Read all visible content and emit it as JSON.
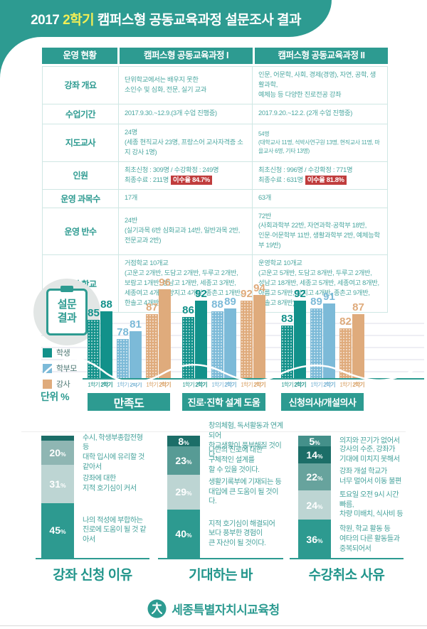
{
  "header": {
    "title_prefix": "2017 ",
    "title_highlight": "2학기",
    "title_rest": " 캠퍼스형 공동교육과정 설문조사 결과"
  },
  "colors": {
    "teal": "#2d9b91",
    "highlight_yellow": "#f2ee55",
    "badge_red": "#c03d3d",
    "student": "#12918a",
    "parent": "#7cbad8",
    "instructor": "#dfab7c"
  },
  "table": {
    "headers": [
      "운영 현황",
      "캠퍼스형 공동교육과정 I",
      "캠퍼스형 공동교육과정 II"
    ],
    "rows": [
      {
        "label": "강좌 개요",
        "c1": "단위학교에서는 배우지 못한\n소인수 및 심화, 전문, 실기 교과",
        "c2": "인문, 어문학, 사회, 경제(경영), 자연, 공학, 생활과학,\n예체능 등 다양한 진로전공 강좌"
      },
      {
        "label": "수업기간",
        "c1": "2017.9.30.~12.9.(3개 수업 진행중)",
        "c2": "2017.9.20.~12.2. (2개 수업 진행중)"
      },
      {
        "label": "지도교사",
        "c1": "24명\n(세종 현직교사 23명, 프랑스어 교사자격증 소지 강사 1명)",
        "c2": "54명\n(대학교사 11명, 석박사연구원 13명, 현직교사 11명, 마을교사 6명, 기타 13명)"
      },
      {
        "label": "인원",
        "c1_line1": "최초신청 : 309명 / 수강확정 : 249명",
        "c1_line2": "최종수료 : 211명",
        "c1_badge": "이수율 84.7%",
        "c2_line1": "최초신청 : 996명 / 수강확정 : 771명",
        "c2_line2": "최종수료 : 631명",
        "c2_badge": "이수율 81.8%"
      },
      {
        "label": "운영 과목수",
        "c1": "17개",
        "c2": "63개"
      },
      {
        "label": "운영 반수",
        "c1": "24반\n(실기과목 6반 심화교과 14반, 일반과목 2반,\n전문교과 2반)",
        "c2": "72반\n(사회과학부 22반, 자연과학·공학부 18반,\n인문·어문학부 11반, 생활과학부 2반, 예체능학부 19반)"
      },
      {
        "label": "참여 학교",
        "c1": "거점학교 10개교\n(고운고 2개반, 도담고 2개반, 두루고 2개반,\n보람고 1개반, 성남고 1개반, 세종고 3개반,\n세종여고 4개반, 양지고 4개반, 종촌고 1개반,\n한솔고 4개반)",
        "c2": "운영학교 10개교\n(고운고 5개반, 도담고 8개반, 두루고 2개반,\n성남고 18개반, 세종고 5개반, 세종여고 8개반,\n아름고 5개반, 양지고 4개반, 종촌고 9개반,\n한솔고 8개반)"
      }
    ]
  },
  "survey_badge": {
    "line1": "설문",
    "line2": "결과"
  },
  "chart_data": [
    {
      "id": "survey-results",
      "type": "bar",
      "title": "설문 결과",
      "unit_label": "단위 %",
      "ylim": [
        64,
        100
      ],
      "grid": true,
      "legend_position": "left",
      "series_names": [
        "학생",
        "학부모",
        "강사"
      ],
      "series_colors": [
        "#12918a",
        "#7cbad8",
        "#dfab7c"
      ],
      "x_labels": [
        "1학기",
        "2학기"
      ],
      "groups": [
        {
          "category": "만족도",
          "series": [
            [
              85,
              88
            ],
            [
              78,
              81
            ],
            [
              87,
              96
            ]
          ]
        },
        {
          "category": "진로·진학 설계 도움",
          "series": [
            [
              86,
              92
            ],
            [
              88,
              89
            ],
            [
              92,
              94
            ]
          ]
        },
        {
          "category": "신청의사/개설의사",
          "series": [
            [
              83,
              92
            ],
            [
              89,
              91
            ],
            [
              82,
              87
            ]
          ]
        }
      ]
    },
    {
      "id": "reason-for-apply",
      "type": "bar",
      "stacked": true,
      "title": "강좌 신청 이유",
      "segments": [
        {
          "value": 4,
          "label": null,
          "color": "#1c6e68",
          "desc": null
        },
        {
          "value": 20,
          "label": "20",
          "color": "#8fb6b3",
          "desc": "수시, 학생부종합전형 등\n대학 입시에 유리할 것 같아서"
        },
        {
          "value": 31,
          "label": "31",
          "color": "#bdd5d3",
          "desc": "강좌에 대한\n지적 호기심이 커서"
        },
        {
          "value": 45,
          "label": "45",
          "color": "#2d9a90",
          "desc": "나의 적성에 부합하는\n진로에 도움이 될 것 같아서"
        }
      ]
    },
    {
      "id": "expectations",
      "type": "bar",
      "stacked": true,
      "title": "기대하는 바",
      "segments": [
        {
          "value": 8,
          "label": "8",
          "color": "#1c6e68",
          "desc": "창의체험, 독서활동과 연계되어\n학교생활이 풍부해질 것이다."
        },
        {
          "value": 23,
          "label": "23",
          "color": "#579b95",
          "desc": "나만의 진로에 대한\n구체적인 설계를\n할 수 있을 것이다."
        },
        {
          "value": 29,
          "label": "29",
          "color": "#bdd5d3",
          "desc": "생활기록부에 기재되는 등\n대입에 큰 도움이 될 것이다."
        },
        {
          "value": 40,
          "label": "40",
          "color": "#2d9a90",
          "desc": "지적 호기심이 해결되어\n보다 풍부한 경험이\n큰 자산이 될 것이다."
        }
      ]
    },
    {
      "id": "cancel-reasons",
      "type": "bar",
      "stacked": true,
      "title": "수강취소 사유",
      "segments": [
        {
          "value": 5,
          "label": "5",
          "color": "#44908a",
          "desc": "의지와 끈기가 없어서"
        },
        {
          "value": 14,
          "label": "14",
          "color": "#1c6e68",
          "desc": "강사의 수준, 강좌가\n기대에 미치지 못해서"
        },
        {
          "value": 22,
          "label": "22",
          "color": "#67a39d",
          "desc": "강좌 개설 학교가\n너무 멀어서 이동 불편"
        },
        {
          "value": 24,
          "label": "24",
          "color": "#bdd5d3",
          "desc": "토요일 오전 9시 시간 빠름,\n차량 미배치, 식사비 등"
        },
        {
          "value": 36,
          "label": "36",
          "color": "#2d9a90",
          "desc": "학원, 학교 활동 등\n여타의 다른 활동들과\n중복되어서"
        }
      ]
    }
  ],
  "footer": {
    "org": "세종특별자치시교육청"
  }
}
